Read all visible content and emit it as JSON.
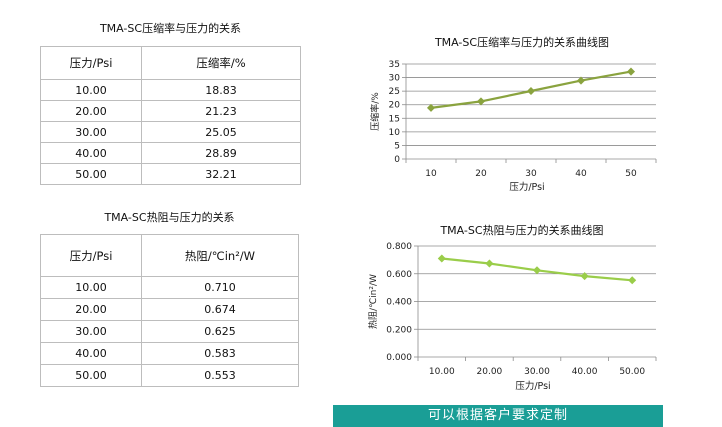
{
  "table1": {
    "title": "TMA-SC压缩率与压力的关系",
    "headers": [
      "压力/Psi",
      "压缩率/%"
    ],
    "rows": [
      [
        "10.00",
        "18.83"
      ],
      [
        "20.00",
        "21.23"
      ],
      [
        "30.00",
        "25.05"
      ],
      [
        "40.00",
        "28.89"
      ],
      [
        "50.00",
        "32.21"
      ]
    ]
  },
  "table2": {
    "title": "TMA-SC热阻与压力的关系",
    "headers": [
      "压力/Psi",
      "热阻/℃in²/W"
    ],
    "rows": [
      [
        "10.00",
        "0.710"
      ],
      [
        "20.00",
        "0.674"
      ],
      [
        "30.00",
        "0.625"
      ],
      [
        "40.00",
        "0.583"
      ],
      [
        "50.00",
        "0.553"
      ]
    ]
  },
  "chart_data": [
    {
      "type": "line",
      "title": "TMA-SC压缩率与压力的关系曲线图",
      "xlabel": "压力/Psi",
      "ylabel": "压缩率/%",
      "categories": [
        "10",
        "20",
        "30",
        "40",
        "50"
      ],
      "values": [
        18.83,
        21.23,
        25.05,
        28.89,
        32.21
      ],
      "ylim": [
        0,
        35
      ],
      "yticks": [
        "0",
        "5",
        "10",
        "15",
        "20",
        "25",
        "30",
        "35"
      ],
      "grid": true,
      "color": "#8aa33f"
    },
    {
      "type": "line",
      "title": "TMA-SC热阻与压力的关系曲线图",
      "xlabel": "压力/Psi",
      "ylabel": "热阻/℃in²/W",
      "categories": [
        "10.00",
        "20.00",
        "30.00",
        "40.00",
        "50.00"
      ],
      "values": [
        0.71,
        0.674,
        0.625,
        0.583,
        0.553
      ],
      "ylim": [
        0,
        0.8
      ],
      "yticks": [
        "0.000",
        "0.200",
        "0.400",
        "0.600",
        "0.800"
      ],
      "grid": true,
      "color": "#9acd4a"
    }
  ],
  "banner": {
    "text": "可以根据客户要求定制"
  }
}
